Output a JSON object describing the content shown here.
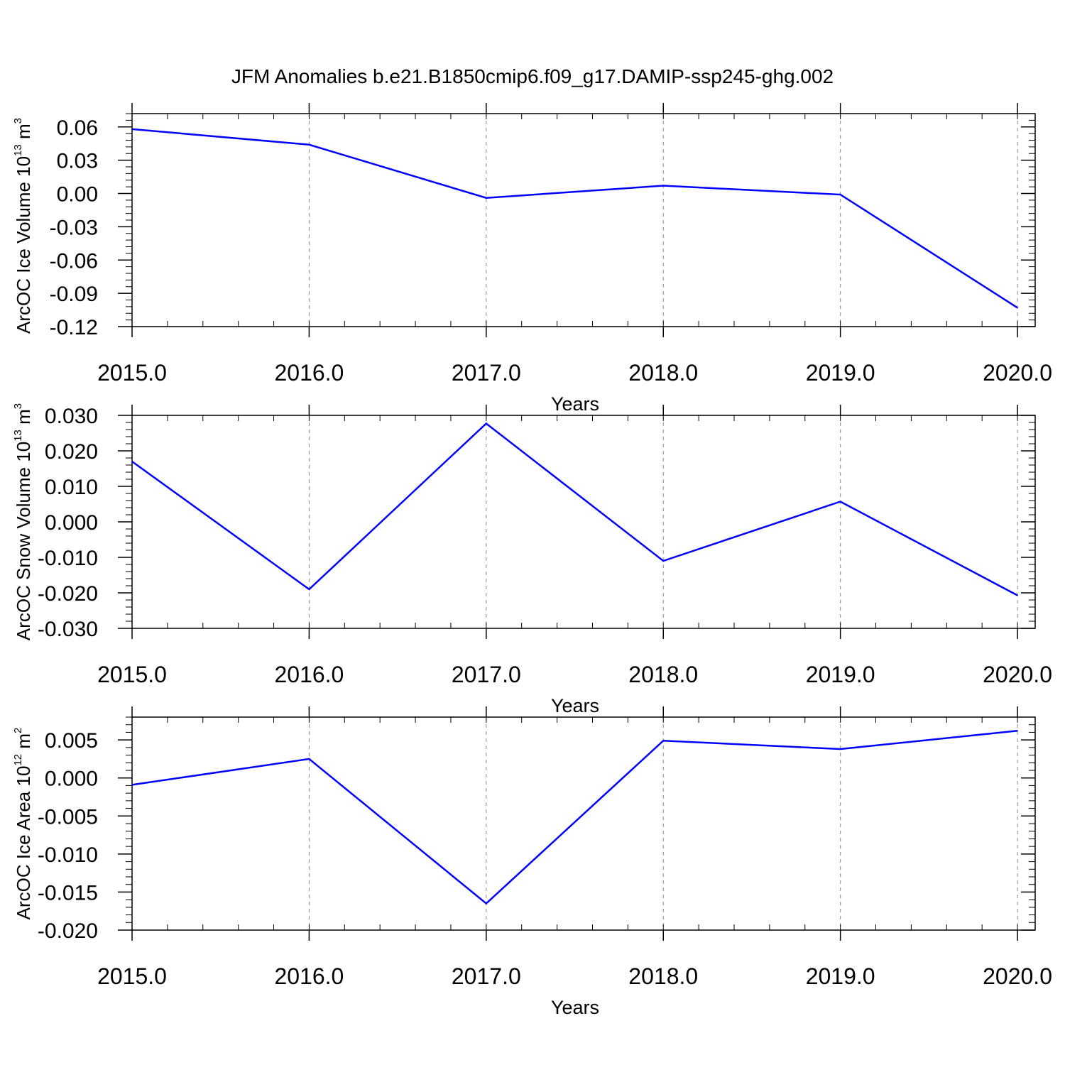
{
  "figure": {
    "title": "JFM Anomalies b.e21.B1850cmip6.f09_g17.DAMIP-ssp245-ghg.002",
    "colors": {
      "line": "#0000ff",
      "axes": "#000000",
      "grid": "#888888",
      "background": "#ffffff"
    }
  },
  "chart_data": [
    {
      "type": "line",
      "title": "",
      "xlabel": "Years",
      "ylabel": "ArcOC Ice Volume 10",
      "ylabel_exponent": "13",
      "ylabel_unit": "m",
      "ylabel_unit_exponent": "3",
      "x": [
        2015,
        2016,
        2017,
        2018,
        2019,
        2020
      ],
      "x_tick_labels": [
        "2015.0",
        "2016.0",
        "2017.0",
        "2018.0",
        "2019.0",
        "2020.0"
      ],
      "xlim": [
        2015,
        2020.1
      ],
      "ylim": [
        -0.12,
        0.072
      ],
      "y_ticks": [
        0.06,
        0.03,
        0.0,
        -0.03,
        -0.06,
        -0.09,
        -0.12
      ],
      "y_tick_labels": [
        "0.06",
        "0.03",
        "0.00",
        "-0.03",
        "-0.06",
        "-0.09",
        "-0.12"
      ],
      "series": [
        {
          "values": [
            0.058,
            0.044,
            -0.004,
            0.007,
            -0.001,
            -0.103
          ],
          "color": "#0000ff"
        }
      ],
      "grid": "vertical dashed at each year",
      "legend": "none"
    },
    {
      "type": "line",
      "title": "",
      "xlabel": "Years",
      "ylabel": "ArcOC Snow Volume 10",
      "ylabel_exponent": "13",
      "ylabel_unit": "m",
      "ylabel_unit_exponent": "3",
      "x": [
        2015,
        2016,
        2017,
        2018,
        2019,
        2020
      ],
      "x_tick_labels": [
        "2015.0",
        "2016.0",
        "2017.0",
        "2018.0",
        "2019.0",
        "2020.0"
      ],
      "xlim": [
        2015,
        2020.1
      ],
      "ylim": [
        -0.03,
        0.03
      ],
      "y_ticks": [
        0.03,
        0.02,
        0.01,
        0.0,
        -0.01,
        -0.02,
        -0.03
      ],
      "y_tick_labels": [
        "0.030",
        "0.020",
        "0.010",
        "0.000",
        "-0.010",
        "-0.020",
        "-0.030"
      ],
      "series": [
        {
          "values": [
            0.017,
            -0.019,
            0.0277,
            -0.011,
            0.0057,
            -0.0207
          ],
          "color": "#0000ff"
        }
      ],
      "grid": "vertical dashed at each year",
      "legend": "none"
    },
    {
      "type": "line",
      "title": "",
      "xlabel": "Years",
      "ylabel": "ArcOC Ice Area 10",
      "ylabel_exponent": "12",
      "ylabel_unit": "m",
      "ylabel_unit_exponent": "2",
      "x": [
        2015,
        2016,
        2017,
        2018,
        2019,
        2020
      ],
      "x_tick_labels": [
        "2015.0",
        "2016.0",
        "2017.0",
        "2018.0",
        "2019.0",
        "2020.0"
      ],
      "xlim": [
        2015,
        2020.1
      ],
      "ylim": [
        -0.02,
        0.008
      ],
      "y_ticks": [
        0.005,
        0.0,
        -0.005,
        -0.01,
        -0.015,
        -0.02
      ],
      "y_tick_labels": [
        "0.005",
        "0.000",
        "-0.005",
        "-0.010",
        "-0.015",
        "-0.020"
      ],
      "series": [
        {
          "values": [
            -0.0009,
            0.0025,
            -0.0165,
            0.0049,
            0.0038,
            0.0062
          ],
          "color": "#0000ff"
        }
      ],
      "grid": "vertical dashed at each year",
      "legend": "none"
    }
  ]
}
